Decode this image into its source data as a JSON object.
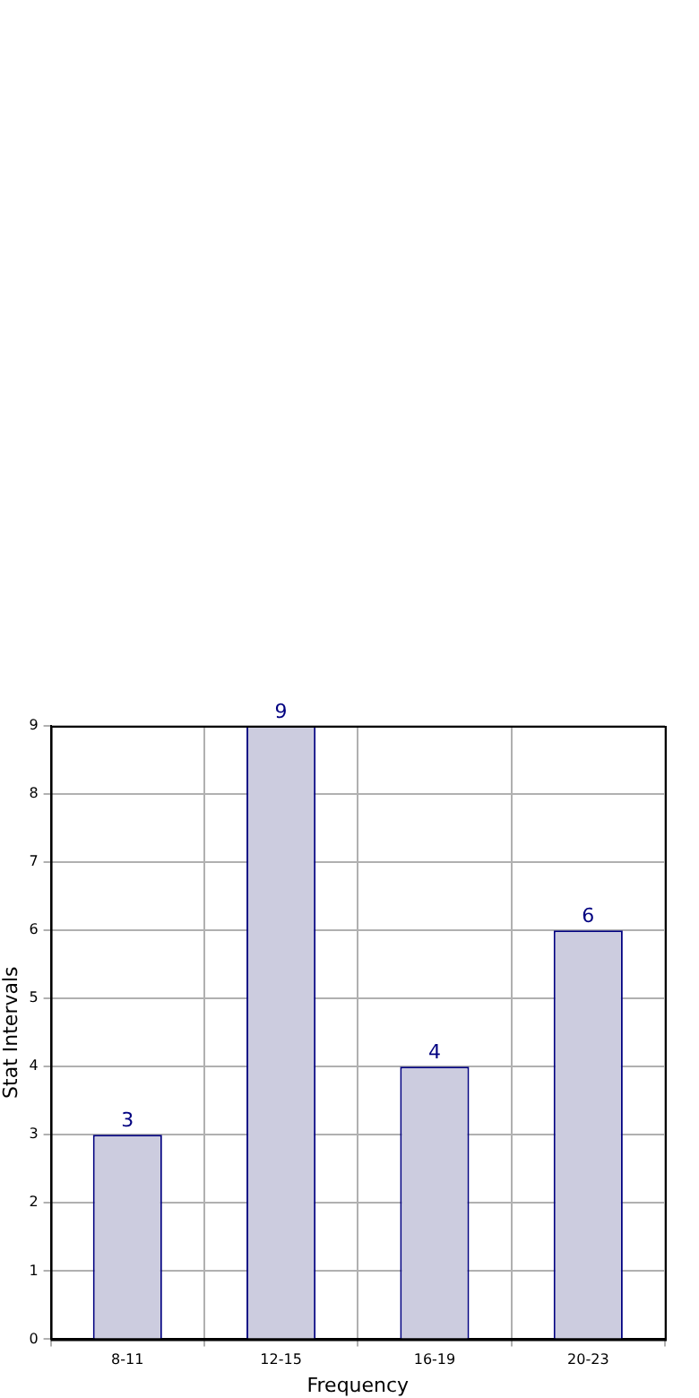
{
  "chart_data": {
    "type": "bar",
    "xlabel": "Frequency",
    "ylabel": "Stat Intervals",
    "categories": [
      "8-11",
      "12-15",
      "16-19",
      "20-23"
    ],
    "values": [
      3,
      9,
      4,
      6
    ],
    "color": "#ccccdf",
    "ylim": [
      0,
      9
    ],
    "yticks": [
      0,
      1,
      2,
      3,
      4,
      5,
      6,
      7,
      8,
      9
    ],
    "grid": true,
    "data_labels": true
  }
}
